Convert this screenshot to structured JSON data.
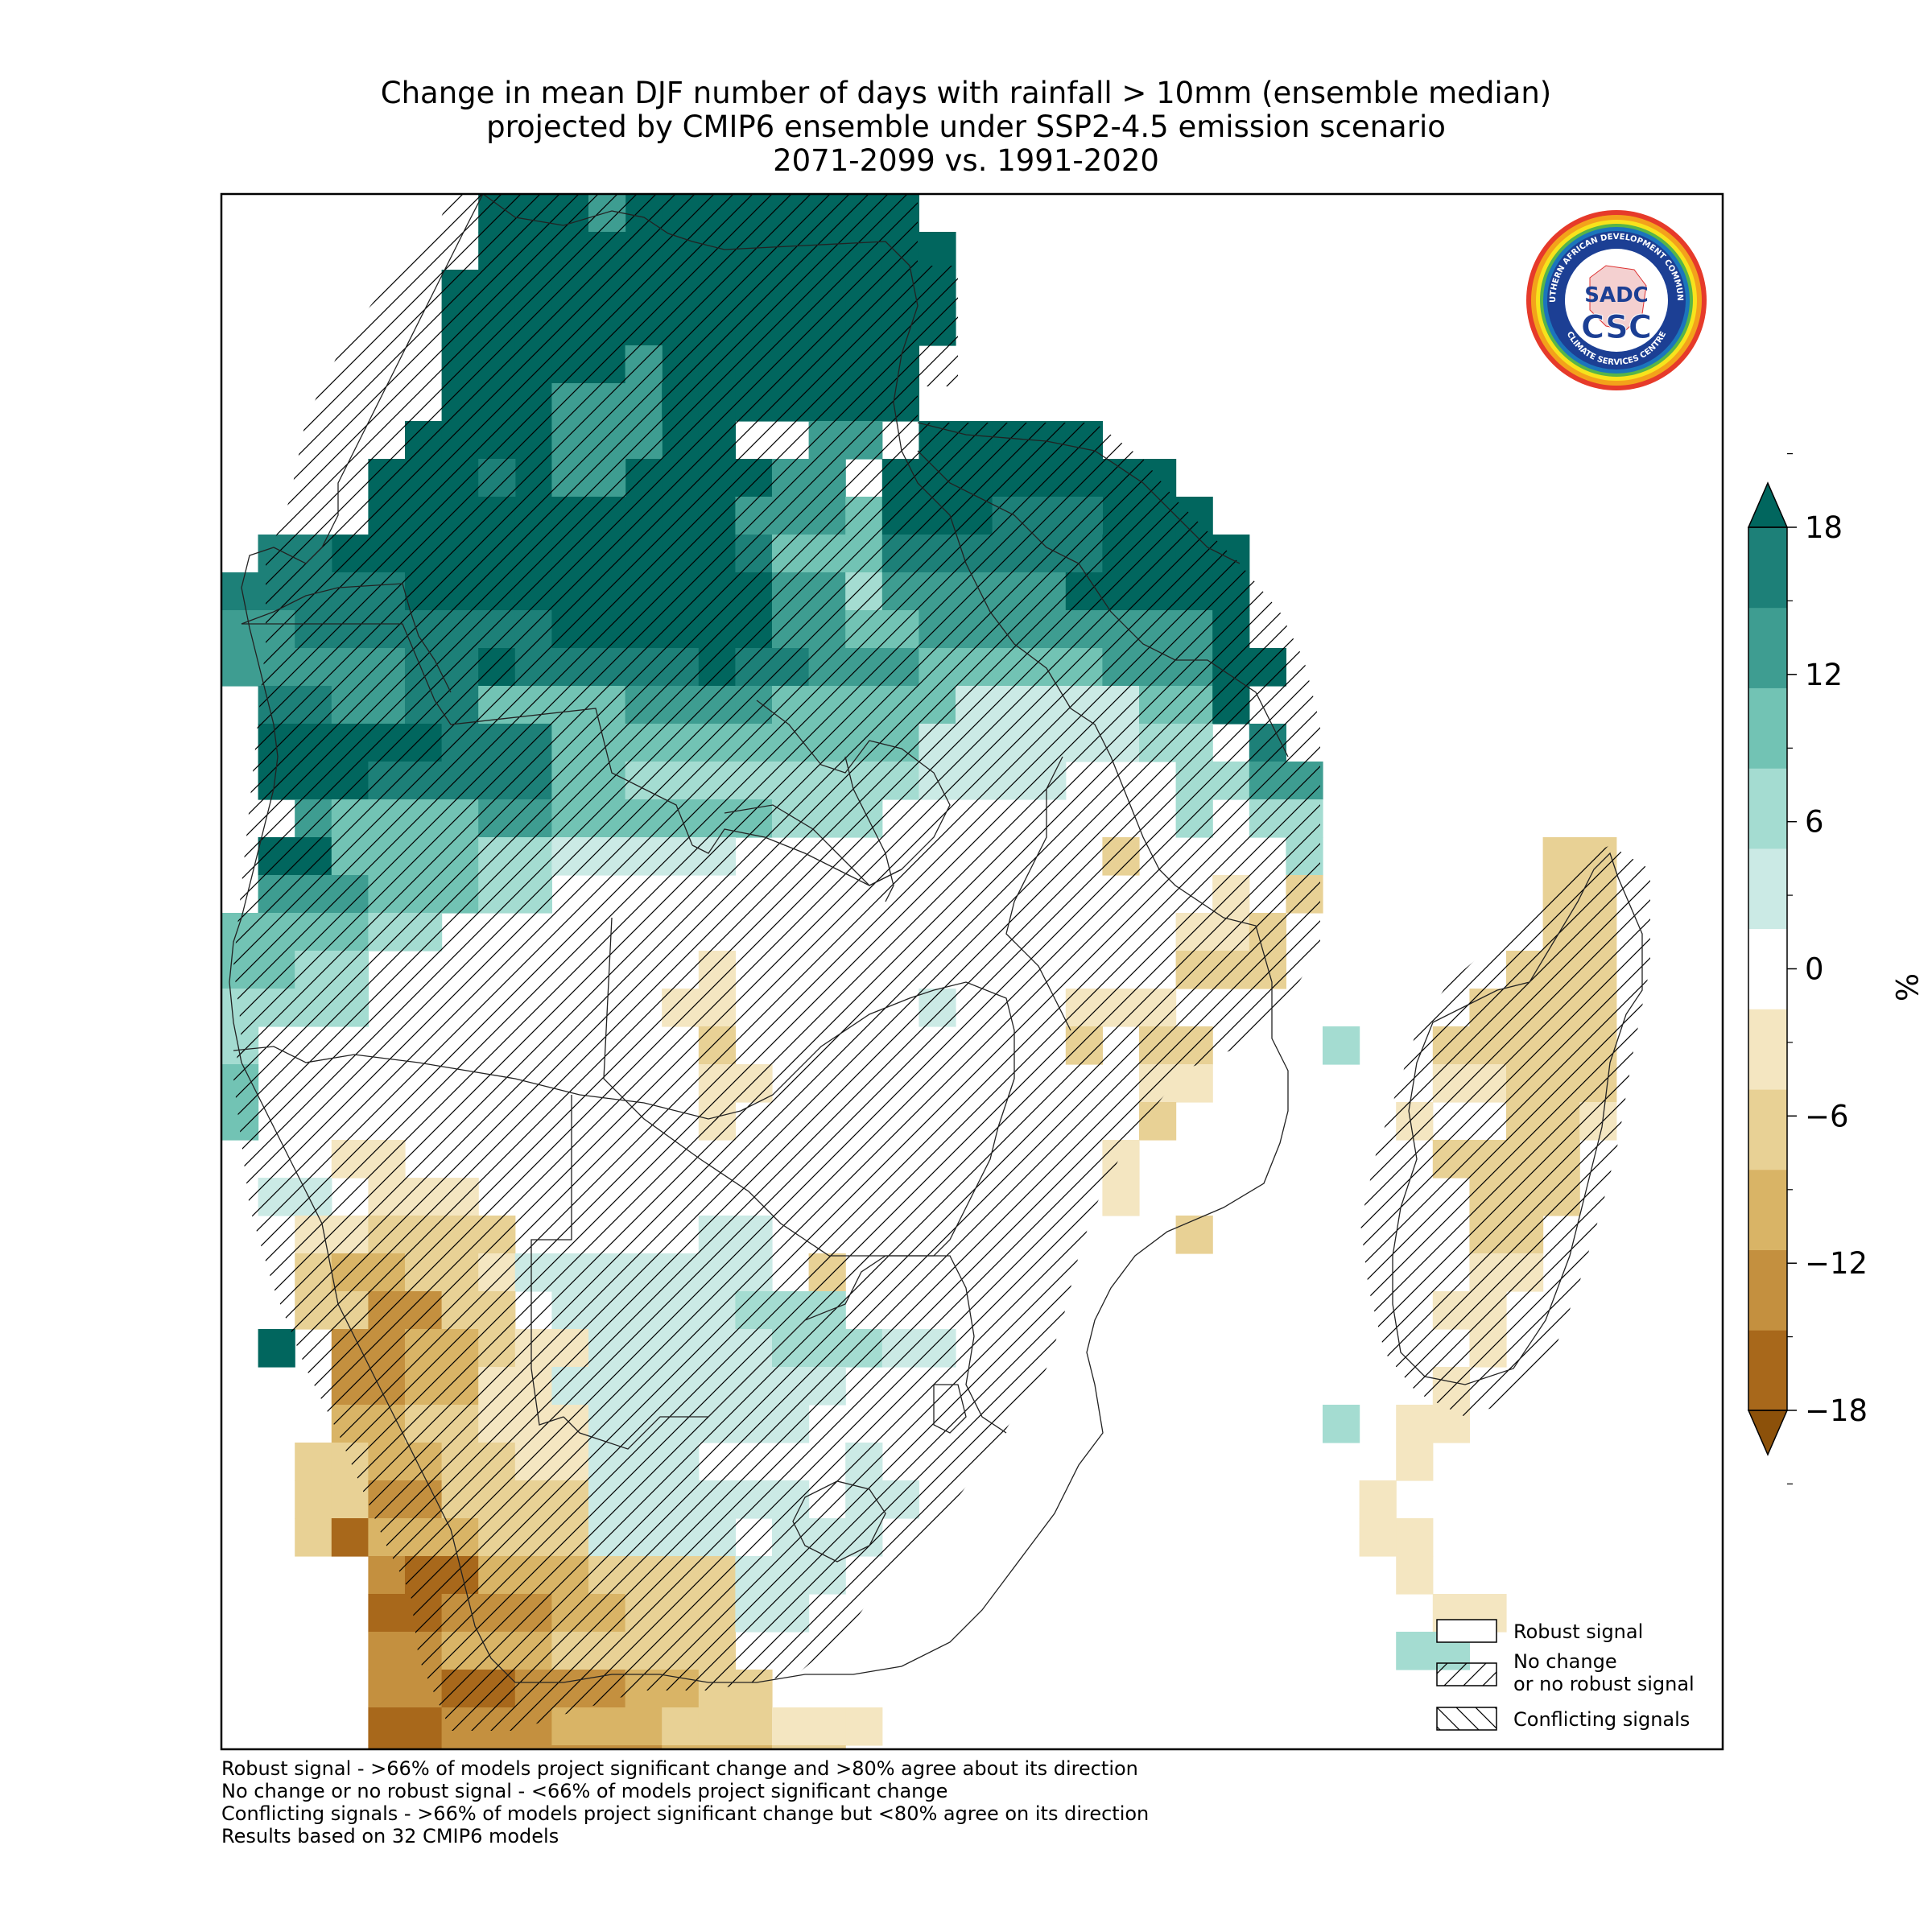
{
  "title": {
    "line1": "Change in mean DJF number of days with rainfall > 10mm (ensemble median)",
    "line2": "projected by CMIP6 ensemble under SSP2-4.5 emission scenario",
    "line3": "2071-2099 vs. 1991-2020"
  },
  "logo": {
    "outer_text": "SOUTHERN AFRICAN DEVELOPMENT COMMUNITY",
    "inner_text": "CLIMATE SERVICES CENTRE",
    "sadc": "SADC",
    "csc": "CSC"
  },
  "colorbar": {
    "unit": "%",
    "ticks": [
      "18",
      "12",
      "6",
      "0",
      "−6",
      "−12",
      "−18"
    ],
    "tick_values": [
      18,
      12,
      6,
      0,
      -6,
      -12,
      -18
    ],
    "range": [
      -21,
      21
    ],
    "colors": [
      "#8c510a",
      "#a8681b",
      "#c4903f",
      "#d9b466",
      "#e8d195",
      "#f4e6c1",
      "#ffffff",
      "#cbeae5",
      "#a4dcd1",
      "#72c3b4",
      "#3e9d91",
      "#1d8078",
      "#01665e"
    ]
  },
  "legend": {
    "robust": "Robust signal",
    "nochange_line1": "No change",
    "nochange_line2": "or no robust signal",
    "conflicting": "Conflicting signals"
  },
  "footnotes": {
    "line1": "Robust signal - >66% of models project significant change and >80% agree about its direction",
    "line2": "No change or no robust signal - <66% of models project significant change",
    "line3": "Conflicting signals - >66% of models project significant change but <80% agree on its direction",
    "line4": "Results based on 32 CMIP6 models"
  }
}
